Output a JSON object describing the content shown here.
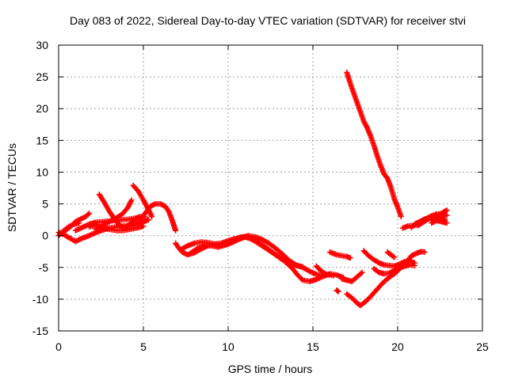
{
  "chart_data": {
    "type": "scatter",
    "title": "Day 083 of 2022, Sidereal Day-to-day VTEC variation (SDTVAR) for receiver stvi",
    "xlabel": "GPS time / hours",
    "ylabel": "SDTVAR / TECUs",
    "xlim": [
      0,
      25
    ],
    "ylim": [
      -15,
      30
    ],
    "xticks": [
      0,
      5,
      10,
      15,
      20,
      25
    ],
    "yticks": [
      -15,
      -10,
      -5,
      0,
      5,
      10,
      15,
      20,
      25,
      30
    ],
    "grid": true,
    "marker": "plus",
    "color": "#ff0000",
    "series": [
      {
        "name": "",
        "segments": [
          [
            [
              0.0,
              0.5
            ],
            [
              0.3,
              0.2
            ],
            [
              0.6,
              -0.3
            ],
            [
              1.0,
              -0.9
            ],
            [
              1.4,
              -0.4
            ],
            [
              1.8,
              0.0
            ],
            [
              2.2,
              0.5
            ],
            [
              2.6,
              0.9
            ],
            [
              3.0,
              1.2
            ],
            [
              3.4,
              1.4
            ],
            [
              3.8,
              1.5
            ],
            [
              4.2,
              1.6
            ],
            [
              4.6,
              1.9
            ],
            [
              5.0,
              2.2
            ],
            [
              5.3,
              2.5
            ]
          ],
          [
            [
              0.0,
              0.0
            ],
            [
              0.3,
              0.8
            ],
            [
              0.6,
              1.4
            ],
            [
              0.9,
              1.8
            ],
            [
              1.2,
              2.0
            ]
          ],
          [
            [
              0.3,
              0.6
            ],
            [
              0.7,
              1.4
            ],
            [
              1.0,
              2.2
            ],
            [
              1.3,
              2.6
            ],
            [
              1.6,
              3.0
            ],
            [
              1.8,
              3.5
            ]
          ],
          [
            [
              1.0,
              0.8
            ],
            [
              1.4,
              1.3
            ],
            [
              1.8,
              1.8
            ],
            [
              2.2,
              2.1
            ],
            [
              2.6,
              2.2
            ],
            [
              3.0,
              2.3
            ],
            [
              3.4,
              2.4
            ],
            [
              3.8,
              2.5
            ],
            [
              4.2,
              2.6
            ],
            [
              4.6,
              2.8
            ],
            [
              5.0,
              3.0
            ]
          ],
          [
            [
              1.8,
              1.4
            ],
            [
              2.2,
              1.6
            ],
            [
              2.6,
              1.2
            ],
            [
              3.0,
              1.0
            ],
            [
              3.4,
              0.8
            ],
            [
              3.8,
              0.8
            ],
            [
              4.2,
              1.0
            ],
            [
              4.6,
              1.2
            ],
            [
              5.0,
              1.5
            ]
          ],
          [
            [
              2.4,
              6.5
            ],
            [
              2.7,
              5.2
            ],
            [
              3.0,
              3.8
            ],
            [
              3.3,
              2.6
            ],
            [
              3.6,
              1.6
            ],
            [
              3.9,
              1.2
            ],
            [
              4.2,
              1.8
            ],
            [
              4.5,
              2.6
            ],
            [
              4.8,
              3.0
            ],
            [
              5.1,
              3.0
            ]
          ],
          [
            [
              2.2,
              1.0
            ],
            [
              2.6,
              1.6
            ],
            [
              3.0,
              2.2
            ],
            [
              3.4,
              2.8
            ],
            [
              3.8,
              3.5
            ],
            [
              4.1,
              4.5
            ],
            [
              4.3,
              5.6
            ]
          ],
          [
            [
              4.4,
              7.9
            ],
            [
              4.7,
              7.0
            ],
            [
              5.0,
              5.6
            ],
            [
              5.3,
              4.1
            ],
            [
              5.5,
              3.0
            ]
          ],
          [
            [
              4.8,
              2.5
            ],
            [
              5.1,
              3.5
            ],
            [
              5.4,
              4.6
            ],
            [
              5.7,
              5.0
            ],
            [
              6.0,
              5.0
            ],
            [
              6.3,
              4.6
            ],
            [
              6.5,
              3.8
            ],
            [
              6.7,
              2.4
            ],
            [
              6.8,
              1.6
            ],
            [
              6.9,
              0.8
            ]
          ],
          [
            [
              6.9,
              -1.2
            ],
            [
              7.1,
              -2.0
            ],
            [
              7.3,
              -2.6
            ],
            [
              7.6,
              -3.0
            ],
            [
              8.0,
              -2.7
            ],
            [
              8.4,
              -2.1
            ],
            [
              8.8,
              -1.6
            ],
            [
              9.2,
              -1.4
            ],
            [
              9.6,
              -1.5
            ],
            [
              10.0,
              -1.3
            ],
            [
              10.4,
              -0.8
            ],
            [
              10.8,
              -0.3
            ],
            [
              11.2,
              0.0
            ],
            [
              11.6,
              -0.2
            ],
            [
              12.0,
              -0.6
            ],
            [
              12.4,
              -1.2
            ],
            [
              12.8,
              -2.0
            ],
            [
              13.2,
              -2.9
            ],
            [
              13.6,
              -3.9
            ],
            [
              14.0,
              -4.6
            ],
            [
              14.4,
              -5.0
            ],
            [
              14.8,
              -5.6
            ],
            [
              15.2,
              -6.1
            ],
            [
              15.6,
              -6.3
            ],
            [
              16.0,
              -6.1
            ]
          ],
          [
            [
              7.2,
              -2.2
            ],
            [
              7.6,
              -1.6
            ],
            [
              8.0,
              -1.2
            ],
            [
              8.4,
              -1.0
            ],
            [
              8.8,
              -1.1
            ],
            [
              9.2,
              -1.3
            ],
            [
              9.6,
              -1.2
            ],
            [
              10.0,
              -0.8
            ],
            [
              10.4,
              -0.5
            ],
            [
              10.8,
              -0.2
            ],
            [
              11.2,
              -0.3
            ],
            [
              11.6,
              -0.9
            ],
            [
              12.0,
              -1.6
            ],
            [
              12.4,
              -2.3
            ],
            [
              12.8,
              -3.0
            ],
            [
              13.2,
              -3.7
            ],
            [
              13.6,
              -4.3
            ],
            [
              14.0,
              -4.7
            ],
            [
              14.4,
              -4.9
            ]
          ],
          [
            [
              7.8,
              -2.7
            ],
            [
              8.2,
              -2.0
            ],
            [
              8.6,
              -1.6
            ],
            [
              9.0,
              -1.6
            ],
            [
              9.4,
              -1.8
            ],
            [
              9.8,
              -1.5
            ],
            [
              10.2,
              -1.1
            ],
            [
              10.6,
              -0.6
            ],
            [
              11.0,
              -0.2
            ],
            [
              11.4,
              -0.5
            ],
            [
              11.8,
              -1.1
            ],
            [
              12.2,
              -1.8
            ],
            [
              12.6,
              -2.6
            ],
            [
              13.0,
              -3.4
            ],
            [
              13.4,
              -4.2
            ],
            [
              13.8,
              -5.2
            ],
            [
              14.1,
              -6.2
            ],
            [
              14.4,
              -7.0
            ],
            [
              14.8,
              -7.2
            ],
            [
              15.2,
              -6.9
            ],
            [
              15.6,
              -6.4
            ],
            [
              16.0,
              -6.0
            ],
            [
              16.4,
              -6.2
            ],
            [
              16.8,
              -6.6
            ]
          ],
          [
            [
              15.2,
              -4.8
            ],
            [
              15.5,
              -5.6
            ],
            [
              15.8,
              -6.1
            ],
            [
              16.2,
              -6.3
            ]
          ],
          [
            [
              16.0,
              -2.6
            ],
            [
              16.4,
              -3.0
            ],
            [
              16.8,
              -3.2
            ],
            [
              17.0,
              -3.3
            ],
            [
              17.2,
              -3.5
            ]
          ],
          [
            [
              16.4,
              -8.6
            ],
            [
              16.5,
              -8.8
            ]
          ],
          [
            [
              16.7,
              -6.8
            ],
            [
              17.0,
              -7.0
            ],
            [
              17.3,
              -7.2
            ],
            [
              17.6,
              -6.5
            ],
            [
              17.9,
              -5.8
            ]
          ],
          [
            [
              17.0,
              -9.2
            ],
            [
              17.3,
              -9.8
            ],
            [
              17.6,
              -10.6
            ],
            [
              17.8,
              -11.0
            ],
            [
              18.1,
              -10.4
            ],
            [
              18.4,
              -9.6
            ],
            [
              18.7,
              -8.7
            ],
            [
              19.0,
              -7.8
            ],
            [
              19.3,
              -7.0
            ],
            [
              19.6,
              -6.4
            ],
            [
              19.9,
              -5.8
            ],
            [
              20.2,
              -5.0
            ],
            [
              20.5,
              -4.2
            ],
            [
              20.8,
              -3.2
            ],
            [
              21.1,
              -2.8
            ],
            [
              21.4,
              -2.5
            ],
            [
              21.6,
              -2.6
            ]
          ],
          [
            [
              17.0,
              25.7
            ],
            [
              17.2,
              24.0
            ],
            [
              17.4,
              22.5
            ],
            [
              17.6,
              21.0
            ],
            [
              17.8,
              19.5
            ],
            [
              18.0,
              18.0
            ],
            [
              18.2,
              17.0
            ],
            [
              18.4,
              15.7
            ],
            [
              18.6,
              14.2
            ],
            [
              18.8,
              12.5
            ],
            [
              19.0,
              11.0
            ],
            [
              19.2,
              9.7
            ],
            [
              19.4,
              9.0
            ],
            [
              19.6,
              7.6
            ],
            [
              19.8,
              5.8
            ],
            [
              20.0,
              4.5
            ],
            [
              20.2,
              3.0
            ]
          ],
          [
            [
              18.0,
              -2.4
            ],
            [
              18.3,
              -3.2
            ],
            [
              18.6,
              -3.8
            ],
            [
              18.9,
              -4.3
            ],
            [
              19.2,
              -4.6
            ],
            [
              19.5,
              -4.7
            ],
            [
              19.8,
              -4.8
            ],
            [
              20.1,
              -4.5
            ],
            [
              20.4,
              -4.1
            ],
            [
              20.7,
              -4.0
            ],
            [
              21.0,
              -4.3
            ]
          ],
          [
            [
              18.6,
              -5.2
            ],
            [
              18.9,
              -5.8
            ],
            [
              19.2,
              -6.0
            ],
            [
              19.5,
              -5.9
            ],
            [
              19.8,
              -5.5
            ],
            [
              20.1,
              -5.1
            ],
            [
              20.4,
              -4.8
            ],
            [
              20.7,
              -4.6
            ],
            [
              21.0,
              -4.7
            ]
          ],
          [
            [
              19.4,
              -2.6
            ],
            [
              19.6,
              -3.0
            ],
            [
              19.8,
              -3.4
            ]
          ],
          [
            [
              20.3,
              1.2
            ],
            [
              20.6,
              1.5
            ],
            [
              20.9,
              1.6
            ],
            [
              21.2,
              1.7
            ]
          ],
          [
            [
              20.8,
              1.3
            ],
            [
              21.1,
              1.9
            ],
            [
              21.4,
              2.3
            ],
            [
              21.7,
              2.7
            ],
            [
              22.0,
              3.1
            ],
            [
              22.3,
              3.4
            ],
            [
              22.6,
              3.4
            ],
            [
              22.9,
              3.2
            ]
          ],
          [
            [
              21.2,
              1.6
            ],
            [
              21.5,
              2.1
            ],
            [
              21.8,
              2.6
            ],
            [
              22.1,
              2.9
            ],
            [
              22.4,
              3.2
            ],
            [
              22.7,
              3.7
            ],
            [
              22.9,
              4.0
            ]
          ],
          [
            [
              21.0,
              1.8
            ],
            [
              21.3,
              2.2
            ],
            [
              21.6,
              2.6
            ],
            [
              21.9,
              2.8
            ],
            [
              22.2,
              2.6
            ],
            [
              22.5,
              2.8
            ],
            [
              22.8,
              2.5
            ]
          ],
          [
            [
              22.0,
              2.0
            ],
            [
              22.3,
              2.4
            ],
            [
              22.6,
              2.2
            ],
            [
              22.9,
              2.0
            ]
          ]
        ]
      }
    ]
  }
}
